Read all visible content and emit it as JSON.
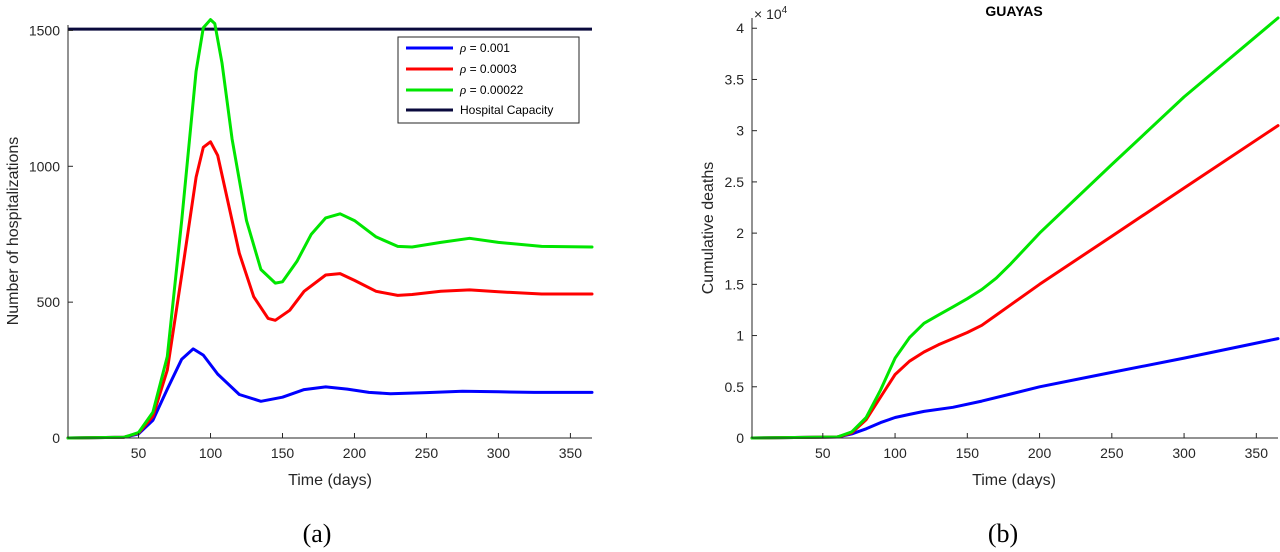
{
  "chart_data": [
    {
      "type": "line",
      "panel_label": "(a)",
      "title": "",
      "xlabel": "Time (days)",
      "ylabel": "Number of hospitalizations",
      "xlim": [
        1,
        365
      ],
      "ylim": [
        0,
        1520
      ],
      "xticks": [
        50,
        100,
        150,
        200,
        250,
        300,
        350
      ],
      "yticks": [
        0,
        500,
        1000,
        1500
      ],
      "grid": false,
      "legend_position": "top-right",
      "series": [
        {
          "name_symbol": "ρ",
          "name_value": " = 0.001",
          "color": "#0000ff",
          "x": [
            1,
            40,
            50,
            60,
            70,
            80,
            88,
            95,
            105,
            120,
            135,
            150,
            165,
            180,
            195,
            210,
            225,
            250,
            275,
            300,
            325,
            365
          ],
          "y": [
            0,
            3,
            15,
            65,
            180,
            290,
            328,
            305,
            235,
            160,
            135,
            150,
            178,
            188,
            180,
            168,
            163,
            167,
            172,
            170,
            168,
            168
          ]
        },
        {
          "name_symbol": "ρ",
          "name_value": " = 0.0003",
          "color": "#ff0000",
          "x": [
            1,
            40,
            50,
            60,
            70,
            80,
            90,
            95,
            100,
            105,
            110,
            120,
            130,
            140,
            145,
            155,
            165,
            180,
            190,
            200,
            215,
            230,
            240,
            260,
            280,
            300,
            330,
            365
          ],
          "y": [
            0,
            3,
            18,
            80,
            250,
            600,
            960,
            1070,
            1090,
            1040,
            920,
            680,
            520,
            440,
            433,
            470,
            540,
            600,
            605,
            580,
            540,
            525,
            528,
            540,
            545,
            538,
            530,
            530
          ]
        },
        {
          "name_symbol": "ρ",
          "name_value": " = 0.00022",
          "color": "#00e600",
          "x": [
            1,
            40,
            50,
            60,
            70,
            80,
            90,
            95,
            100,
            103,
            108,
            115,
            125,
            135,
            145,
            150,
            160,
            170,
            180,
            190,
            200,
            215,
            230,
            240,
            260,
            280,
            300,
            330,
            365
          ],
          "y": [
            0,
            3,
            20,
            95,
            300,
            800,
            1350,
            1510,
            1540,
            1525,
            1380,
            1100,
            800,
            620,
            570,
            575,
            650,
            750,
            810,
            825,
            800,
            740,
            705,
            703,
            720,
            735,
            720,
            705,
            703
          ]
        }
      ],
      "reference_line": {
        "name": "Hospital Capacity",
        "y": 1505,
        "color": "#0a0a3c"
      }
    },
    {
      "type": "line",
      "panel_label": "(b)",
      "title": "GUAYAS",
      "xlabel": "Time (days)",
      "ylabel": "Cumulative deaths",
      "y_exponent_base": "× 10",
      "y_exponent_power": "4",
      "xlim": [
        1,
        365
      ],
      "ylim": [
        0,
        4.1
      ],
      "xticks": [
        50,
        100,
        150,
        200,
        250,
        300,
        350
      ],
      "yticks": [
        0,
        0.5,
        1,
        1.5,
        2,
        2.5,
        3,
        3.5,
        4
      ],
      "grid": false,
      "series": [
        {
          "color": "#0000ff",
          "x": [
            1,
            60,
            70,
            80,
            90,
            100,
            110,
            120,
            140,
            160,
            180,
            200,
            250,
            300,
            365
          ],
          "y": [
            0,
            0.01,
            0.04,
            0.09,
            0.15,
            0.2,
            0.23,
            0.26,
            0.3,
            0.36,
            0.43,
            0.5,
            0.64,
            0.78,
            0.97
          ]
        },
        {
          "color": "#ff0000",
          "x": [
            1,
            60,
            70,
            80,
            90,
            100,
            110,
            120,
            130,
            140,
            150,
            160,
            170,
            180,
            200,
            250,
            300,
            365
          ],
          "y": [
            0,
            0.01,
            0.05,
            0.18,
            0.4,
            0.62,
            0.75,
            0.84,
            0.91,
            0.97,
            1.03,
            1.1,
            1.2,
            1.3,
            1.5,
            1.97,
            2.44,
            3.05
          ]
        },
        {
          "color": "#00e600",
          "x": [
            1,
            60,
            70,
            80,
            90,
            100,
            110,
            120,
            130,
            140,
            150,
            160,
            170,
            180,
            200,
            250,
            300,
            365
          ],
          "y": [
            0,
            0.01,
            0.06,
            0.2,
            0.47,
            0.78,
            0.98,
            1.12,
            1.2,
            1.28,
            1.36,
            1.45,
            1.56,
            1.7,
            2.0,
            2.67,
            3.33,
            4.1
          ]
        }
      ]
    }
  ]
}
